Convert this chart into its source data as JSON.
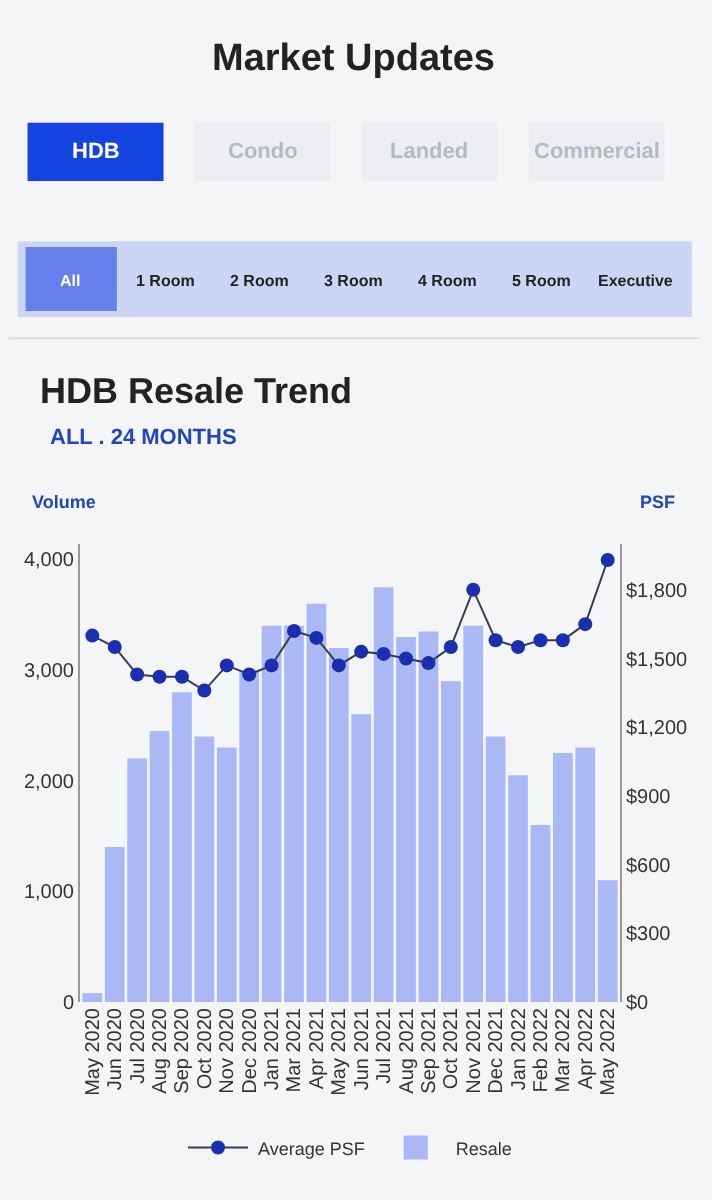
{
  "chart_data": {
    "type": "bar",
    "title": "HDB Resale Trend",
    "subtitle": "ALL . 24 MONTHS",
    "ylabel": "Volume",
    "y2label": "PSF",
    "annotations": [
      "Market Updates",
      "HDB",
      "Condo",
      "Landed",
      "Commercial",
      "All",
      "1 Room",
      "2 Room",
      "3 Room",
      "4 Room",
      "5 Room",
      "Executive"
    ],
    "categories": [
      "May 2020",
      "Jun 2020",
      "Jul 2020",
      "Aug 2020",
      "Sep 2020",
      "Oct 2020",
      "Nov 2020",
      "Dec 2020",
      "Jan 2021",
      "Mar 2021",
      "Apr 2021",
      "May 2021",
      "Jun 2021",
      "Jul 2021",
      "Aug 2021",
      "Sep 2021",
      "Oct 2021",
      "Nov 2021",
      "Dec 2021",
      "Jan 2022",
      "Feb 2022",
      "Mar 2022",
      "Apr 2022",
      "May 2022"
    ],
    "series": [
      {
        "name": "Average PSF",
        "type": "line",
        "axis": "y2",
        "color": "#1a2fb0",
        "marker": "circle",
        "line_style": "solid",
        "values": [
          1600,
          1550,
          1430,
          1420,
          1420,
          1360,
          1470,
          1430,
          1470,
          1620,
          1590,
          1470,
          1530,
          1520,
          1500,
          1480,
          1550,
          1800,
          1580,
          1550,
          1580,
          1580,
          1650,
          1930
        ]
      },
      {
        "name": "Resale",
        "color": "#aab8f6",
        "values": [
          80,
          1400,
          2200,
          2450,
          2800,
          2400,
          2300,
          3000,
          3400,
          3400,
          3600,
          3200,
          2600,
          3750,
          3300,
          3350,
          2900,
          3400,
          2400,
          2050,
          1600,
          2250,
          2300,
          1100
        ]
      }
    ],
    "ylim": [
      0,
      4140
    ],
    "yticks": [
      0,
      {
        "value": 1000,
        "label": "1,000"
      },
      {
        "value": 2000,
        "label": "2,000"
      },
      {
        "value": 3000,
        "label": "3,000"
      },
      {
        "value": 4000,
        "label": "4,000"
      }
    ],
    "y2lim": [
      0,
      2000
    ],
    "y2ticks": [
      {
        "value": 0,
        "label": "$0"
      },
      {
        "value": 300,
        "label": "$300"
      },
      {
        "value": 600,
        "label": "$600"
      },
      {
        "value": 900,
        "label": "$900"
      },
      {
        "value": 1200,
        "label": "$1,200"
      },
      {
        "value": 1500,
        "label": "$1,500"
      },
      {
        "value": 1800,
        "label": "$1,800"
      }
    ],
    "grid": false,
    "legend": "bottom"
  }
}
